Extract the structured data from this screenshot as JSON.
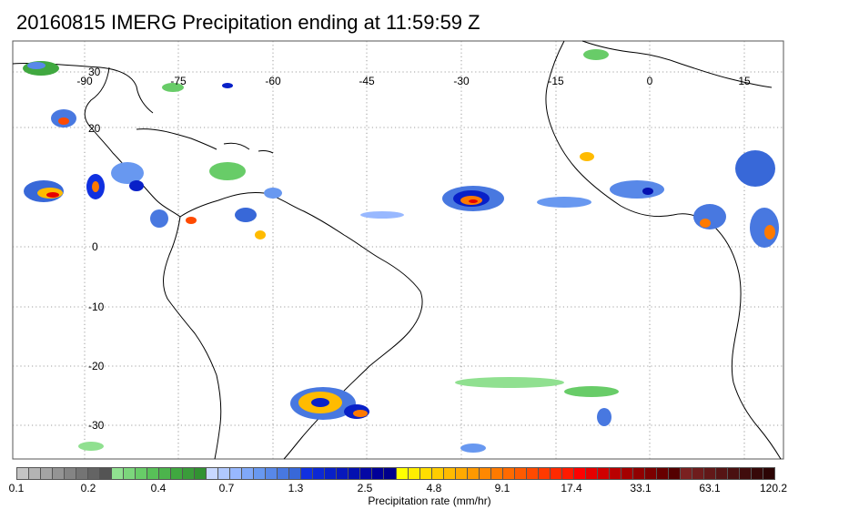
{
  "title": "20160815 IMERG Precipitation ending at 11:59:59 Z",
  "map": {
    "lon_labels": [
      "-90",
      "-75",
      "-60",
      "-45",
      "-30",
      "-15",
      "0",
      "15"
    ],
    "lat_labels": [
      "30",
      "20",
      "0",
      "-10",
      "-20",
      "-30"
    ],
    "gridline_style": "dotted",
    "land_color": "#ffffff",
    "coast_color": "#000000"
  },
  "colorbar": {
    "title": "Precipitation rate (mm/hr)",
    "tick_labels": [
      "0.1",
      "0.2",
      "0.4",
      "0.7",
      "1.3",
      "2.5",
      "4.8",
      "9.1",
      "17.4",
      "33.1",
      "63.1",
      "120.2"
    ],
    "colors": [
      "#c4c4c4",
      "#b4b4b4",
      "#a4a4a4",
      "#949494",
      "#848484",
      "#747474",
      "#646464",
      "#545454",
      "#90e090",
      "#7cd67c",
      "#68cc68",
      "#58c058",
      "#4cb44c",
      "#40a840",
      "#3a9c3a",
      "#329232",
      "#c8d8ff",
      "#b0c8ff",
      "#98b8ff",
      "#80a8f8",
      "#6898f0",
      "#5888e8",
      "#4878e0",
      "#3868d8",
      "#1030e0",
      "#0c28d4",
      "#0820c8",
      "#0818bc",
      "#0410b0",
      "#0408a4",
      "#000098",
      "#00008c",
      "#ffff00",
      "#ffee00",
      "#ffdd00",
      "#ffcc00",
      "#ffbb00",
      "#ffaa00",
      "#ff9900",
      "#ff8800",
      "#ff7a00",
      "#ff6a00",
      "#ff5a00",
      "#ff4a00",
      "#ff3a00",
      "#ff2a00",
      "#ff1a00",
      "#ff0000",
      "#e60000",
      "#d00000",
      "#ba0000",
      "#a40000",
      "#900000",
      "#7c0000",
      "#680000",
      "#540000",
      "#7a2020",
      "#6e1c1c",
      "#621818",
      "#561414",
      "#4a1010",
      "#400c0c",
      "#360808",
      "#2c0404"
    ]
  }
}
